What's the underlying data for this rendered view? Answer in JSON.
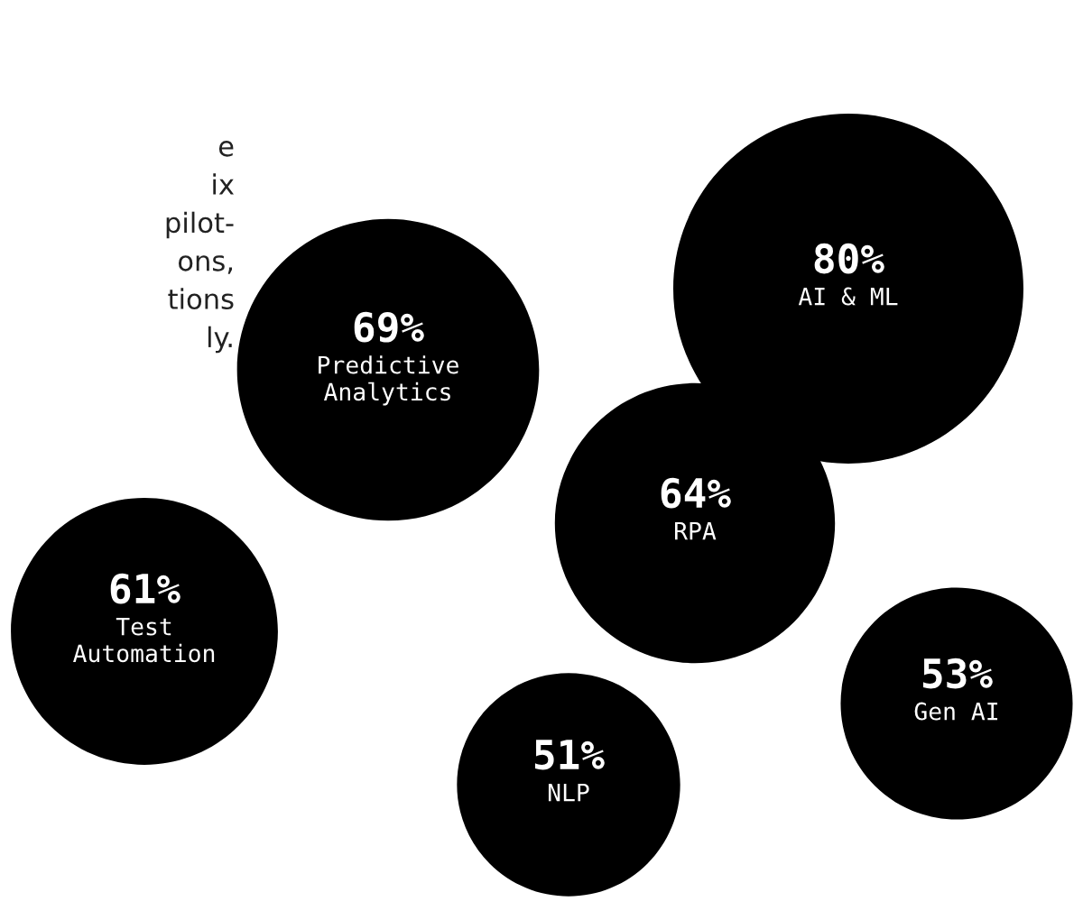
{
  "chart_data": {
    "type": "other",
    "categories": [
      "AI & ML",
      "Predictive\nAnalytics",
      "RPA",
      "Test\nAutomation",
      "Gen AI",
      "NLP"
    ],
    "values": [
      80,
      69,
      64,
      61,
      53,
      51
    ],
    "value_labels": [
      "80%",
      "69%",
      "64%",
      "61%",
      "53%",
      "51%"
    ],
    "color": "#000000",
    "annotations": [
      "e\nix\npilot-\nons,\ntions\nly."
    ]
  }
}
